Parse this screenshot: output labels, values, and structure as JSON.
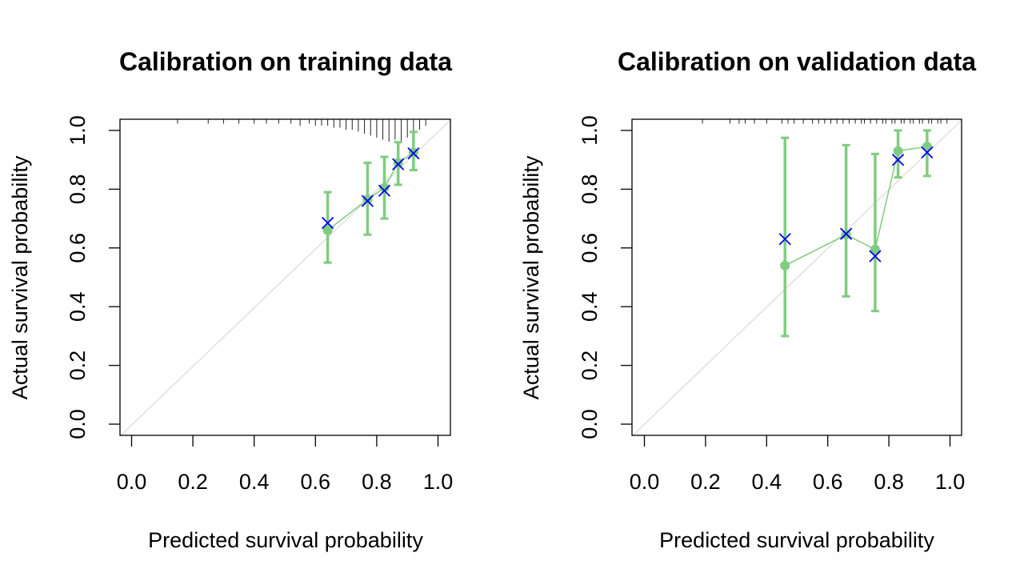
{
  "chart_data": [
    {
      "type": "scatter",
      "title": "Calibration on training data",
      "xlabel": "Predicted survival probability",
      "ylabel": "Actual survival probability",
      "xlim": [
        0,
        1
      ],
      "ylim": [
        0,
        1
      ],
      "x_ticks": [
        "0.0",
        "0.2",
        "0.4",
        "0.6",
        "0.8",
        "1.0"
      ],
      "y_ticks": [
        "0.0",
        "0.2",
        "0.4",
        "0.6",
        "0.8",
        "1.0"
      ],
      "reference_line": "y = x",
      "grid": false,
      "observed": {
        "x": [
          0.64,
          0.77,
          0.825,
          0.87,
          0.92
        ],
        "y": [
          0.66,
          0.765,
          0.805,
          0.89,
          0.925
        ],
        "lower": [
          0.55,
          0.645,
          0.7,
          0.815,
          0.865
        ],
        "upper": [
          0.79,
          0.89,
          0.91,
          0.96,
          0.995
        ],
        "color": "#7fcc7f"
      },
      "corrected": {
        "x": [
          0.64,
          0.77,
          0.825,
          0.87,
          0.92
        ],
        "y": [
          0.685,
          0.76,
          0.795,
          0.885,
          0.922
        ],
        "marker": "x",
        "color": "#0000ee"
      },
      "rug": [
        {
          "x": 0.15,
          "h": 1
        },
        {
          "x": 0.25,
          "h": 1
        },
        {
          "x": 0.3,
          "h": 1
        },
        {
          "x": 0.35,
          "h": 1
        },
        {
          "x": 0.4,
          "h": 1
        },
        {
          "x": 0.44,
          "h": 1
        },
        {
          "x": 0.48,
          "h": 1
        },
        {
          "x": 0.52,
          "h": 1
        },
        {
          "x": 0.55,
          "h": 2
        },
        {
          "x": 0.58,
          "h": 1
        },
        {
          "x": 0.6,
          "h": 2
        },
        {
          "x": 0.62,
          "h": 2
        },
        {
          "x": 0.64,
          "h": 2
        },
        {
          "x": 0.66,
          "h": 3
        },
        {
          "x": 0.68,
          "h": 3
        },
        {
          "x": 0.7,
          "h": 4
        },
        {
          "x": 0.72,
          "h": 4
        },
        {
          "x": 0.74,
          "h": 5
        },
        {
          "x": 0.76,
          "h": 6
        },
        {
          "x": 0.78,
          "h": 7
        },
        {
          "x": 0.8,
          "h": 8
        },
        {
          "x": 0.82,
          "h": 9
        },
        {
          "x": 0.84,
          "h": 10
        },
        {
          "x": 0.86,
          "h": 9
        },
        {
          "x": 0.88,
          "h": 10
        },
        {
          "x": 0.9,
          "h": 8
        },
        {
          "x": 0.92,
          "h": 6
        },
        {
          "x": 0.94,
          "h": 4
        },
        {
          "x": 0.96,
          "h": 2
        }
      ]
    },
    {
      "type": "scatter",
      "title": "Calibration on validation data",
      "xlabel": "Predicted survival probability",
      "ylabel": "Actual survival probability",
      "xlim": [
        0,
        1
      ],
      "ylim": [
        0,
        1
      ],
      "x_ticks": [
        "0.0",
        "0.2",
        "0.4",
        "0.6",
        "0.8",
        "1.0"
      ],
      "y_ticks": [
        "0.0",
        "0.2",
        "0.4",
        "0.6",
        "0.8",
        "1.0"
      ],
      "reference_line": "y = x",
      "grid": false,
      "observed": {
        "x": [
          0.46,
          0.66,
          0.755,
          0.83,
          0.925
        ],
        "y": [
          0.54,
          0.645,
          0.595,
          0.93,
          0.945
        ],
        "lower": [
          0.3,
          0.435,
          0.385,
          0.84,
          0.845
        ],
        "upper": [
          0.975,
          0.95,
          0.92,
          1.0,
          1.0
        ],
        "color": "#7fcc7f"
      },
      "corrected": {
        "x": [
          0.46,
          0.66,
          0.755,
          0.83,
          0.925
        ],
        "y": [
          0.63,
          0.648,
          0.572,
          0.9,
          0.925
        ],
        "marker": "x",
        "color": "#0000ee"
      },
      "rug": [
        {
          "x": 0.19,
          "h": 1
        },
        {
          "x": 0.28,
          "h": 1
        },
        {
          "x": 0.31,
          "h": 1
        },
        {
          "x": 0.33,
          "h": 1
        },
        {
          "x": 0.36,
          "h": 1
        },
        {
          "x": 0.4,
          "h": 1
        },
        {
          "x": 0.45,
          "h": 1
        },
        {
          "x": 0.47,
          "h": 1
        },
        {
          "x": 0.49,
          "h": 1
        },
        {
          "x": 0.52,
          "h": 1
        },
        {
          "x": 0.55,
          "h": 1
        },
        {
          "x": 0.57,
          "h": 1
        },
        {
          "x": 0.59,
          "h": 1
        },
        {
          "x": 0.61,
          "h": 1
        },
        {
          "x": 0.63,
          "h": 1
        },
        {
          "x": 0.65,
          "h": 1
        },
        {
          "x": 0.67,
          "h": 1
        },
        {
          "x": 0.69,
          "h": 1
        },
        {
          "x": 0.71,
          "h": 1
        },
        {
          "x": 0.72,
          "h": 1
        },
        {
          "x": 0.74,
          "h": 1
        },
        {
          "x": 0.76,
          "h": 1
        },
        {
          "x": 0.78,
          "h": 1
        },
        {
          "x": 0.79,
          "h": 1
        },
        {
          "x": 0.81,
          "h": 1
        },
        {
          "x": 0.82,
          "h": 1
        },
        {
          "x": 0.84,
          "h": 1
        },
        {
          "x": 0.85,
          "h": 1
        },
        {
          "x": 0.87,
          "h": 1
        },
        {
          "x": 0.88,
          "h": 1
        },
        {
          "x": 0.9,
          "h": 1
        },
        {
          "x": 0.91,
          "h": 1
        },
        {
          "x": 0.93,
          "h": 1
        },
        {
          "x": 0.94,
          "h": 1
        },
        {
          "x": 0.96,
          "h": 1
        },
        {
          "x": 0.97,
          "h": 1
        },
        {
          "x": 0.99,
          "h": 1
        }
      ]
    }
  ]
}
